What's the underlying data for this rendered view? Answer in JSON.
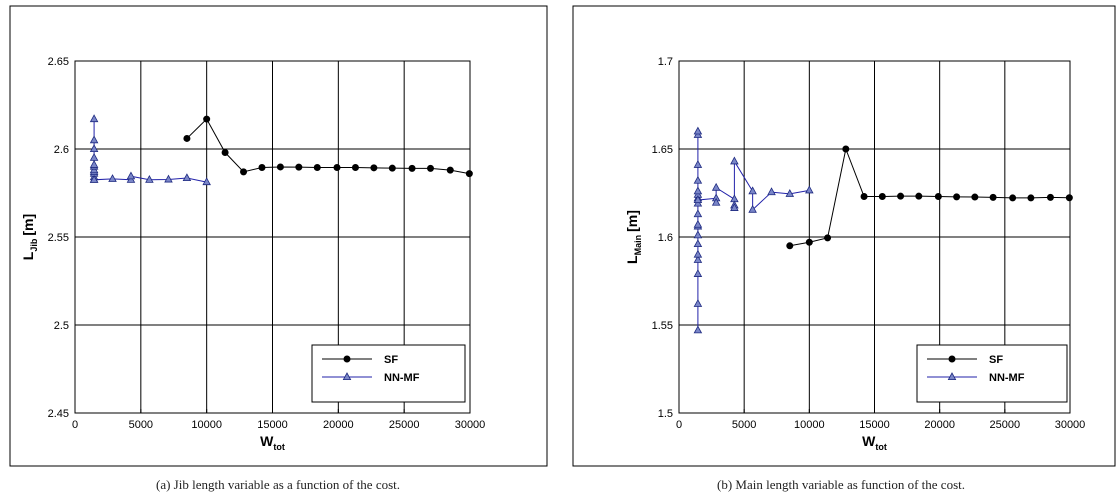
{
  "chart_data": [
    {
      "type": "line",
      "xlabel": {
        "main": "W",
        "sub": "tot"
      },
      "ylabel": {
        "main": "L",
        "sub": "Jib",
        "unit": "[m]"
      },
      "xlim": [
        0,
        30000
      ],
      "ylim": [
        2.45,
        2.65
      ],
      "xticks": [
        0,
        5000,
        10000,
        15000,
        20000,
        25000,
        30000
      ],
      "yticks": [
        2.45,
        2.5,
        2.55,
        2.6,
        2.65
      ],
      "ytick_labels": [
        "2.45",
        "2.5",
        "2.55",
        "2.6",
        "2.65"
      ],
      "grid": true,
      "legend_position": "bottom-right",
      "caption": "(a)  Jib length variable as a function of the cost.",
      "series": [
        {
          "name": "SF",
          "color": "#000000",
          "marker": "circle",
          "x": [
            8500,
            10000,
            11400,
            12800,
            14200,
            15600,
            17000,
            18400,
            19900,
            21300,
            22700,
            24100,
            25600,
            27000,
            28500,
            29950
          ],
          "y": [
            2.606,
            2.617,
            2.598,
            2.587,
            2.5895,
            2.5898,
            2.5897,
            2.5895,
            2.5895,
            2.5895,
            2.5893,
            2.5891,
            2.589,
            2.589,
            2.588,
            2.586
          ]
        },
        {
          "name": "NN-MF",
          "color": "#2222aa",
          "marker": "triangle",
          "x": [
            1450,
            1450,
            1450,
            1450,
            1450,
            1450,
            1450,
            1450,
            1450,
            1450,
            1450,
            1450,
            2850,
            4250,
            4250,
            5650,
            7100,
            8500,
            10000
          ],
          "y": [
            2.5825,
            2.584,
            2.586,
            2.587,
            2.588,
            2.59,
            2.591,
            2.595,
            2.6,
            2.605,
            2.617,
            2.5825,
            2.583,
            2.5825,
            2.5845,
            2.5825,
            2.5827,
            2.5835,
            2.5812
          ]
        }
      ]
    },
    {
      "type": "line",
      "xlabel": {
        "main": "W",
        "sub": "tot"
      },
      "ylabel": {
        "main": "L",
        "sub": "Main",
        "unit": "[m]"
      },
      "xlim": [
        0,
        30000
      ],
      "ylim": [
        1.5,
        1.7
      ],
      "xticks": [
        0,
        5000,
        10000,
        15000,
        20000,
        25000,
        30000
      ],
      "yticks": [
        1.5,
        1.55,
        1.6,
        1.65,
        1.7
      ],
      "ytick_labels": [
        "1.5",
        "1.55",
        "1.6",
        "1.65",
        "1.7"
      ],
      "grid": true,
      "legend_position": "bottom-right",
      "caption": "(b)  Main length variable as function of the cost.",
      "series": [
        {
          "name": "SF",
          "color": "#000000",
          "marker": "circle",
          "x": [
            8500,
            10000,
            11400,
            12800,
            14200,
            15600,
            17000,
            18400,
            19900,
            21300,
            22700,
            24100,
            25600,
            27000,
            28500,
            29950
          ],
          "y": [
            1.595,
            1.597,
            1.5995,
            1.65,
            1.623,
            1.623,
            1.6232,
            1.6232,
            1.623,
            1.6228,
            1.6227,
            1.6225,
            1.6222,
            1.6222,
            1.6225,
            1.6223
          ],
          "point_order": "as-listed"
        },
        {
          "name": "NN-MF",
          "color": "#2222aa",
          "marker": "triangle",
          "x": [
            1450,
            1450,
            1450,
            1450,
            1450,
            1450,
            1450,
            1450,
            1450,
            1450,
            1450,
            1450,
            1450,
            1450,
            1450,
            1450,
            1450,
            1450,
            1450,
            2850,
            2850,
            2850,
            4250,
            4250,
            4250,
            4250,
            5650,
            5650,
            7100,
            8500,
            10000
          ],
          "y": [
            1.547,
            1.562,
            1.579,
            1.587,
            1.59,
            1.596,
            1.601,
            1.606,
            1.607,
            1.613,
            1.619,
            1.622,
            1.624,
            1.626,
            1.632,
            1.641,
            1.658,
            1.66,
            1.621,
            1.622,
            1.6195,
            1.628,
            1.6215,
            1.618,
            1.6165,
            1.643,
            1.626,
            1.6155,
            1.6255,
            1.6245,
            1.6265
          ]
        }
      ]
    }
  ]
}
